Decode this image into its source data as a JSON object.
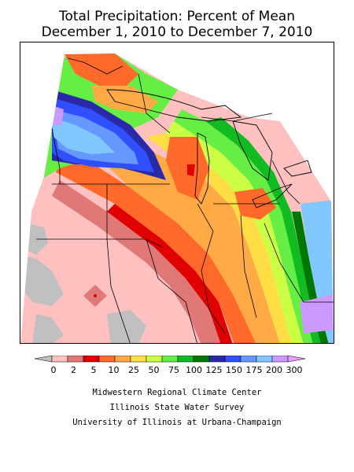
{
  "title": {
    "line1": "Total Precipitation: Percent of Mean",
    "line2": "December 1, 2010 to December 7, 2010"
  },
  "legend": {
    "labels": [
      "0",
      "2",
      "5",
      "10",
      "25",
      "50",
      "75",
      "100",
      "125",
      "150",
      "175",
      "200",
      "300"
    ],
    "colors": [
      "#c0c0c0",
      "#ffc0c0",
      "#e07878",
      "#e00000",
      "#ff6a2a",
      "#ffaa44",
      "#ffdd44",
      "#ccff44",
      "#66ee44",
      "#11bb22",
      "#007700",
      "#2a2aa8",
      "#3050ff",
      "#6699ff",
      "#80c8ff",
      "#cc99ff",
      "#ee99ff"
    ]
  },
  "credits": {
    "line1": "Midwestern Regional Climate Center",
    "line2": "Illinois State Water Survey",
    "line3": "University of Illinois at Urbana-Champaign"
  }
}
